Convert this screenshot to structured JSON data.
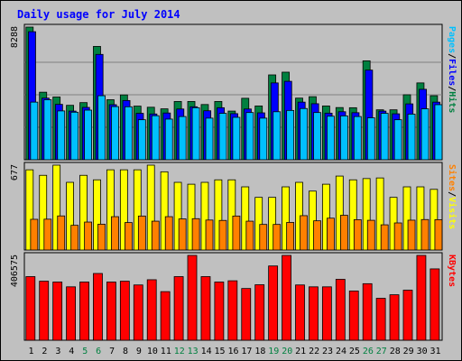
{
  "chart_data": {
    "type": "bar",
    "title": "Daily usage for July 2014",
    "categories": [
      "1",
      "2",
      "3",
      "4",
      "5",
      "6",
      "7",
      "8",
      "9",
      "10",
      "11",
      "12",
      "13",
      "14",
      "15",
      "16",
      "17",
      "18",
      "19",
      "20",
      "21",
      "22",
      "23",
      "24",
      "25",
      "26",
      "27",
      "28",
      "29",
      "30",
      "31"
    ],
    "weekend_categories": [
      "5",
      "6",
      "12",
      "13",
      "19",
      "20",
      "26",
      "27"
    ],
    "panels": [
      {
        "id": "hits-files-pages",
        "max_label": "8288",
        "ylim": [
          0,
          8288
        ],
        "right_label_parts": [
          "Pages",
          "/",
          "Files",
          "/",
          "Hits"
        ],
        "series": [
          {
            "name": "Hits",
            "color": "#008040",
            "values": [
              8288,
              4220,
              3920,
              3400,
              3570,
              7080,
              3750,
              4050,
              3350,
              3280,
              3180,
              3640,
              3640,
              3450,
              3640,
              3040,
              3840,
              3360,
              5300,
              5470,
              3850,
              3940,
              3360,
              3260,
              3250,
              6180,
              3120,
              3120,
              4060,
              4800,
              4000
            ]
          },
          {
            "name": "Files",
            "color": "#0000ff",
            "values": [
              8000,
              3850,
              3460,
              3040,
              3270,
              6580,
              3440,
              3700,
              2900,
              2860,
              2920,
              3170,
              3310,
              3060,
              3250,
              2880,
              3170,
              2930,
              4800,
              4900,
              3600,
              3500,
              2910,
              3000,
              2940,
              5600,
              3040,
              2870,
              3490,
              4400,
              3600
            ]
          },
          {
            "name": "Pages",
            "color": "#00c0ff",
            "values": [
              3600,
              3750,
              3050,
              2970,
              3100,
              4000,
              3320,
              3310,
              2500,
              2750,
              2540,
              2700,
              3250,
              2600,
              2900,
              2650,
              2950,
              2600,
              3000,
              3080,
              3200,
              2950,
              2720,
              2740,
              2700,
              2620,
              2900,
              2500,
              2850,
              3180,
              3440
            ]
          }
        ]
      },
      {
        "id": "visits-sites",
        "max_label": "677",
        "ylim": [
          0,
          677
        ],
        "right_label_parts": [
          "Sites",
          "/",
          "Visits"
        ],
        "series": [
          {
            "name": "Visits",
            "color": "#ffff00",
            "values": [
              640,
              596,
              677,
              540,
              596,
              560,
              640,
              640,
              640,
              677,
              624,
              540,
              525,
              540,
              560,
              560,
              504,
              420,
              420,
              504,
              540,
              470,
              525,
              590,
              560,
              570,
              575,
              420,
              504,
              504,
              484
            ]
          },
          {
            "name": "Sites",
            "color": "#ff8000",
            "values": [
              245,
              246,
              272,
              197,
              223,
              206,
              266,
              219,
              271,
              230,
              266,
              248,
              250,
              239,
              236,
              271,
              230,
              204,
              204,
              220,
              274,
              233,
              254,
              277,
              242,
              237,
              201,
              216,
              238,
              243,
              242
            ]
          }
        ]
      },
      {
        "id": "kbytes",
        "max_label": "406575",
        "ylim": [
          0,
          406575
        ],
        "right_label_parts": [
          "KBytes"
        ],
        "series": [
          {
            "name": "KBytes",
            "color": "#ff0000",
            "values": [
              305000,
              283000,
              279000,
              256000,
              279000,
              320000,
              279000,
              283000,
              265000,
              290000,
              233000,
              305000,
              406575,
              305000,
              279000,
              285000,
              248000,
              266000,
              356000,
              406575,
              265000,
              256000,
              256000,
              292000,
              236000,
              271000,
              201000,
              218000,
              240000,
              406575,
              342000
            ]
          }
        ]
      }
    ],
    "grid": true
  }
}
